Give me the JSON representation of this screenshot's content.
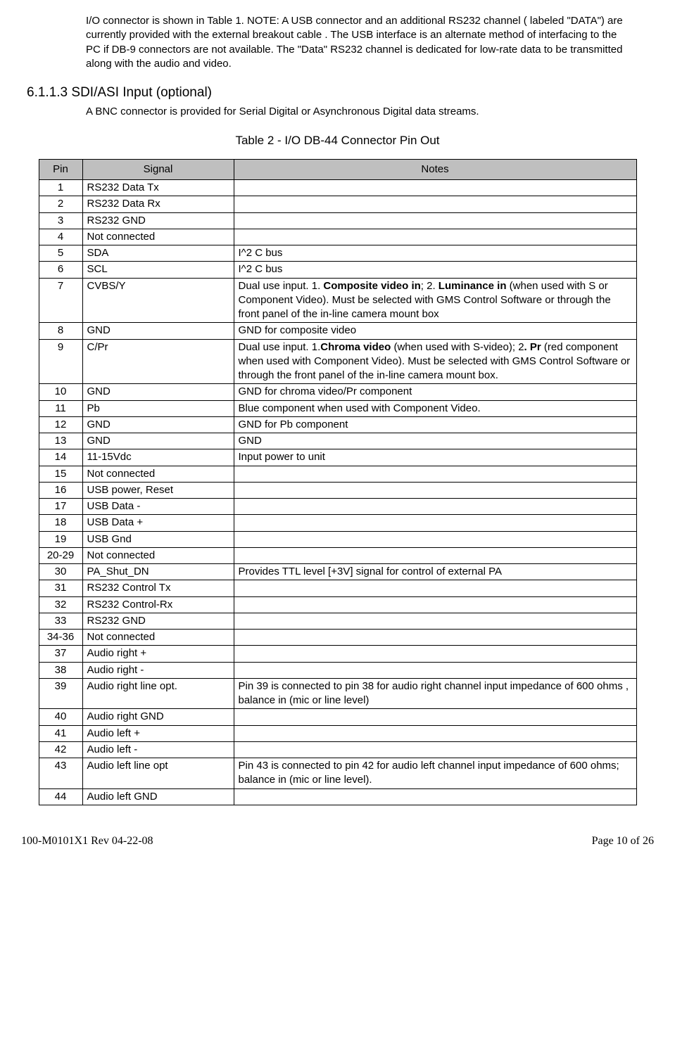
{
  "intro_paragraph": "I/O connector is shown in Table 1.  NOTE: A USB connector and an additional RS232 channel ( labeled \"DATA\") are currently provided with the external breakout cable . The USB interface is an alternate method of interfacing to the PC if DB-9 connectors are not available. The \"Data\" RS232 channel is dedicated for low-rate data to be transmitted along with the audio and video.",
  "section": {
    "number": "6.1.1.3",
    "title": "SDI/ASI Input (optional)",
    "body": "A BNC connector is provided for Serial Digital or Asynchronous Digital data streams."
  },
  "table": {
    "caption": "Table 2 - I/O DB-44 Connector Pin Out",
    "headers": {
      "pin": "Pin",
      "signal": "Signal",
      "notes": "Notes"
    },
    "rows": [
      {
        "pin": "1",
        "signal": "RS232 Data Tx",
        "notes_html": ""
      },
      {
        "pin": "2",
        "signal": "RS232 Data Rx",
        "notes_html": ""
      },
      {
        "pin": "3",
        "signal": "RS232 GND",
        "notes_html": ""
      },
      {
        "pin": "4",
        "signal": "Not connected",
        "notes_html": ""
      },
      {
        "pin": "5",
        "signal": "SDA",
        "notes_html": "I^2 C bus"
      },
      {
        "pin": "6",
        "signal": "SCL",
        "notes_html": "I^2 C bus"
      },
      {
        "pin": "7",
        "signal": "CVBS/Y",
        "notes_html": "Dual use input. 1. <span class=\"bold\">Composite video in</span>; 2. <span class=\"bold\">Luminance in</span> (when used with S or Component Video). Must be selected with GMS Control Software or through the front panel of the in-line camera mount box"
      },
      {
        "pin": "8",
        "signal": "GND",
        "notes_html": "GND for composite video"
      },
      {
        "pin": "9",
        "signal": "C/Pr",
        "notes_html": "Dual use input. 1.<span class=\"bold\">Chroma video</span> (when used with S-video); 2<span class=\"bold\">. Pr</span> (red component when used with Component Video). Must be selected with GMS Control Software or through the front panel of the in-line camera mount box."
      },
      {
        "pin": "10",
        "signal": "GND",
        "notes_html": "GND for chroma video/Pr component"
      },
      {
        "pin": "11",
        "signal": "Pb",
        "notes_html": "Blue component when used with Component Video."
      },
      {
        "pin": "12",
        "signal": "GND",
        "notes_html": "GND for Pb component"
      },
      {
        "pin": "13",
        "signal": "GND",
        "notes_html": "GND"
      },
      {
        "pin": "14",
        "signal": "11-15Vdc",
        "notes_html": "Input power to unit"
      },
      {
        "pin": "15",
        "signal": "Not connected",
        "notes_html": ""
      },
      {
        "pin": "16",
        "signal": "USB power, Reset",
        "notes_html": ""
      },
      {
        "pin": "17",
        "signal": "USB Data -",
        "notes_html": ""
      },
      {
        "pin": "18",
        "signal": "USB Data +",
        "notes_html": ""
      },
      {
        "pin": "19",
        "signal": "USB Gnd",
        "notes_html": ""
      },
      {
        "pin": "20-29",
        "signal": "Not connected",
        "notes_html": ""
      },
      {
        "pin": "30",
        "signal": "PA_Shut_DN",
        "notes_html": "Provides TTL level [+3V] signal for control of external PA"
      },
      {
        "pin": "31",
        "signal": "RS232 Control Tx",
        "notes_html": ""
      },
      {
        "pin": "32",
        "signal": "RS232 Control-Rx",
        "notes_html": ""
      },
      {
        "pin": "33",
        "signal": "RS232 GND",
        "notes_html": ""
      },
      {
        "pin": "34-36",
        "signal": "Not connected",
        "notes_html": ""
      },
      {
        "pin": "37",
        "signal": "Audio right +",
        "notes_html": ""
      },
      {
        "pin": "38",
        "signal": "Audio right -",
        "notes_html": ""
      },
      {
        "pin": "39",
        "signal": "Audio right line opt.",
        "notes_html": "Pin 39 is connected to pin 38 for audio right channel input impedance of 600 ohms , balance in (mic or line level)"
      },
      {
        "pin": "40",
        "signal": "Audio right GND",
        "notes_html": ""
      },
      {
        "pin": "41",
        "signal": "Audio left +",
        "notes_html": ""
      },
      {
        "pin": "42",
        "signal": "Audio left -",
        "notes_html": ""
      },
      {
        "pin": "43",
        "signal": "Audio left line opt",
        "notes_html": "Pin 43 is connected to pin 42 for audio left channel input impedance of 600 ohms; balance in (mic or line level)."
      },
      {
        "pin": "44",
        "signal": "Audio left GND",
        "notes_html": ""
      }
    ]
  },
  "footer": {
    "left": "100-M0101X1 Rev 04-22-08",
    "right": "Page 10 of 26"
  }
}
